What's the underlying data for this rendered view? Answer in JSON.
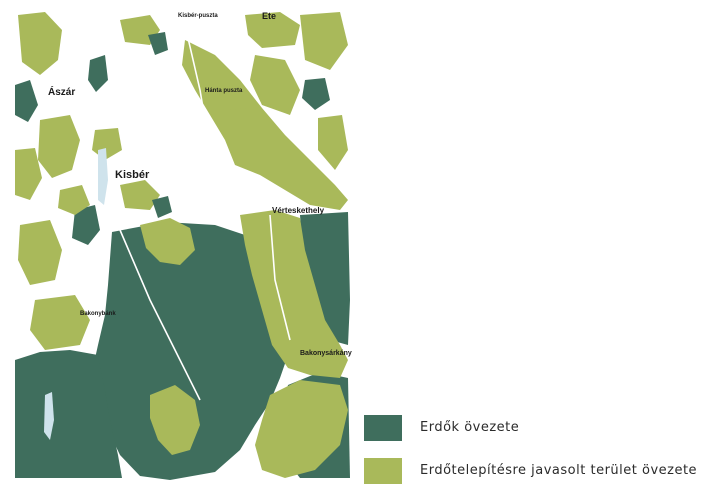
{
  "colors": {
    "forest": "#3f6e5d",
    "afforestation": "#a9b95a",
    "water": "#cfe3ec",
    "background": "#ffffff",
    "text": "#1a1a1a"
  },
  "places": {
    "asar": "Ászár",
    "kisber": "Kisbér",
    "ete": "Ete",
    "vereskut": "Vérteskethely",
    "bakonysarkany": "Bakonysárkány",
    "top_small": "Kisbér-puszta",
    "mid_small": "Hánta puszta",
    "south_small": "Bakonybánk"
  },
  "legend": {
    "forest_label": "Erdők övezete",
    "afforestation_label": "Erdőtelepítésre javasolt terület övezete"
  }
}
